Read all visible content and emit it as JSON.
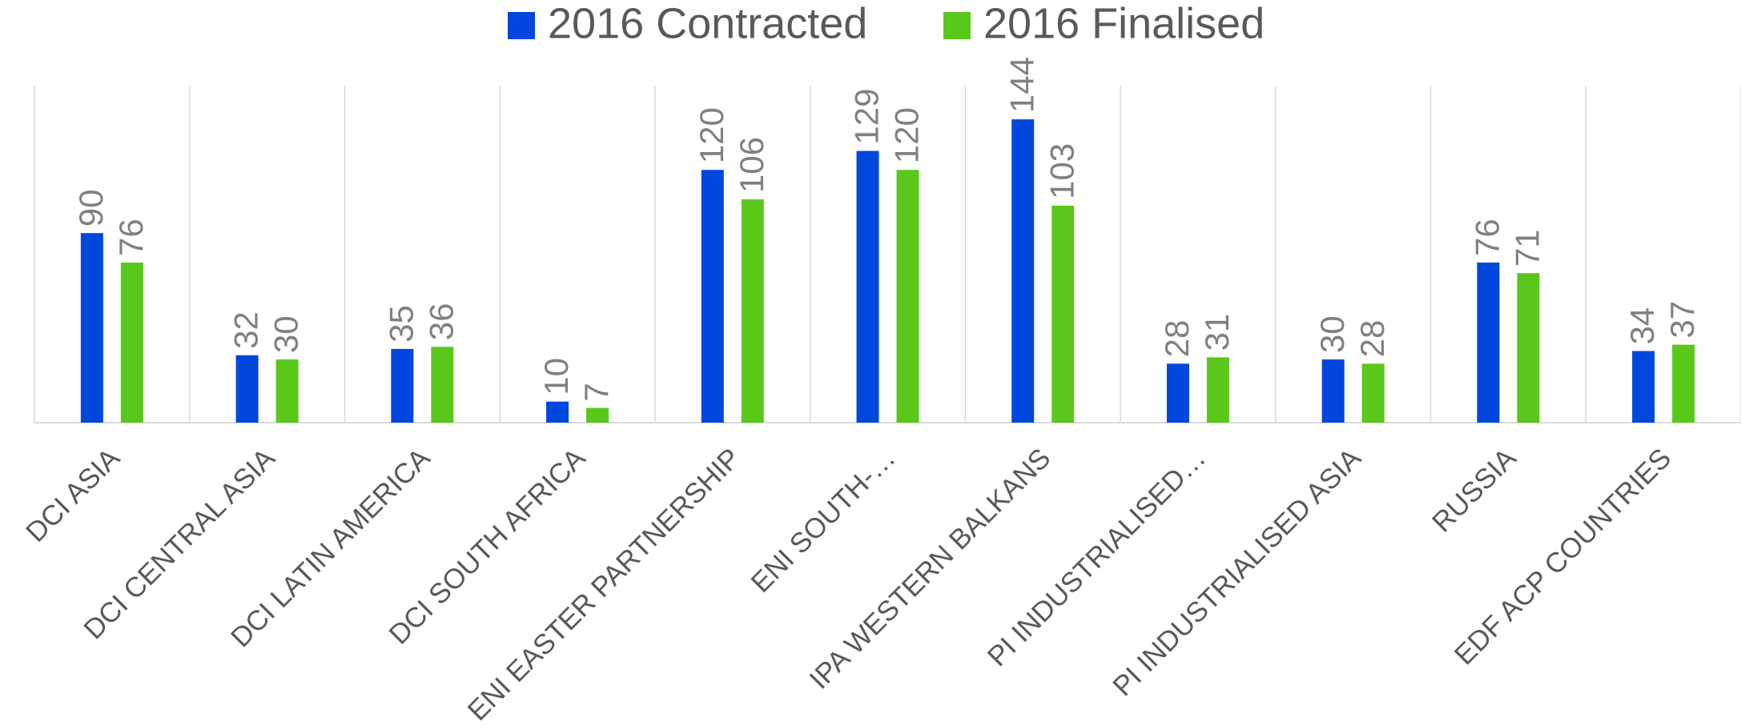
{
  "chart_data": {
    "type": "bar",
    "categories": [
      "DCI ASIA",
      "DCI CENTRAL ASIA",
      "DCI LATIN AMERICA",
      "DCI SOUTH AFRICA",
      "ENI EASTER PARTNERSHIP",
      "ENI SOUTH-…",
      "IPA WESTERN BALKANS",
      "PI INDUSTRIALISED…",
      "PI INDUSTRIALISED ASIA",
      "RUSSIA",
      "EDF ACP COUNTRIES"
    ],
    "series": [
      {
        "name": "2016 Contracted",
        "color": "#0047dd",
        "values": [
          90,
          32,
          35,
          10,
          120,
          129,
          144,
          28,
          30,
          76,
          34
        ]
      },
      {
        "name": "2016 Finalised",
        "color": "#5ac81a",
        "values": [
          76,
          30,
          36,
          7,
          106,
          120,
          103,
          31,
          28,
          71,
          37
        ]
      }
    ],
    "ylim": [
      0,
      160
    ],
    "legend": "top"
  }
}
